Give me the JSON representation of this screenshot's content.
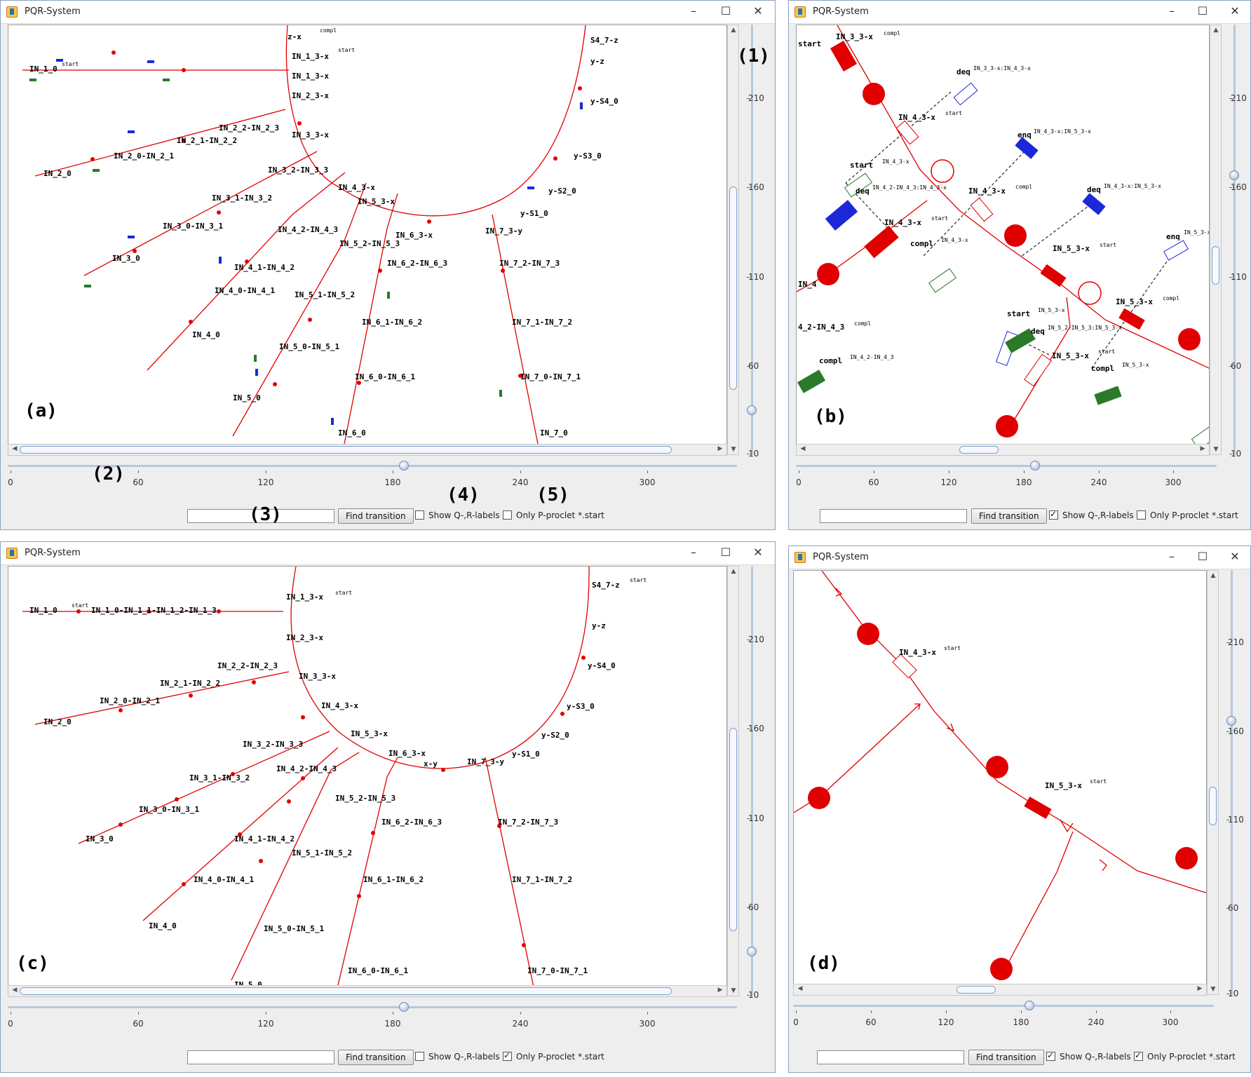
{
  "colors": {
    "net": "#e00000",
    "compl": "#2a7a2a",
    "start_blue": "#1a28d8",
    "frame": "#8aa1c1"
  },
  "icons": [
    "java-cup-icon",
    "minimize-icon",
    "maximize-icon",
    "close-icon"
  ],
  "windows": {
    "a": {
      "title": "PQR-System",
      "panel_label": "(a)",
      "callouts": {
        "c1": "(1)",
        "c2": "(2)",
        "c3": "(3)",
        "c4": "(4)",
        "c5": "(5)"
      },
      "h_ruler": [
        "0",
        "60",
        "120",
        "180",
        "240",
        "300"
      ],
      "v_ruler": [
        "210",
        "160",
        "110",
        "60",
        "10"
      ],
      "search_value": "",
      "find_label": "Find transition",
      "show_qr_label": "Show Q-,R-labels",
      "only_p_label": "Only P-proclet *.start",
      "show_qr_checked": false,
      "only_p_checked": false,
      "graph_labels": {
        "l0": "IN_1_0",
        "l1": "IN_1_3-x",
        "l2": "IN_1_3-x",
        "l3": "IN_2_3-x",
        "l4": "IN_3_3-x",
        "l5": "IN_2_2-IN_2_3",
        "l6": "IN_2_1-IN_2_2",
        "l7": "IN_2_0-IN_2_1",
        "l8": "IN_2_0",
        "l9": "IN_3_2-IN_3_3",
        "l10": "IN_3_1-IN_3_2",
        "l11": "IN_3_0-IN_3_1",
        "l12": "IN_3_0",
        "l13": "IN_4_3-x",
        "l14": "IN_4_2-IN_4_3",
        "l15": "IN_4_1-IN_4_2",
        "l16": "IN_4_0-IN_4_1",
        "l17": "IN_4_0",
        "l18": "IN_5_3-x",
        "l19": "IN_5_2-IN_5_3",
        "l20": "IN_5_1-IN_5_2",
        "l21": "IN_5_0-IN_5_1",
        "l22": "IN_5_0",
        "l23": "IN_6_3-x",
        "l24": "IN_6_2-IN_6_3",
        "l25": "IN_6_1-IN_6_2",
        "l26": "IN_6_0-IN_6_1",
        "l27": "IN_6_0",
        "l28": "IN_7_3-y",
        "l29": "IN_7_2-IN_7_3",
        "l30": "IN_7_1-IN_7_2",
        "l31": "IN_7_0-IN_7_1",
        "l32": "IN_7_0",
        "l33": "S4_7-z",
        "l34": "y-z",
        "l35": "y-S4_0",
        "l36": "y-S3_0",
        "l37": "y-S2_0",
        "l38": "y-S1_0",
        "l39": "z-x"
      },
      "sup_start": "start",
      "sup_compl": "compl"
    },
    "b": {
      "title": "PQR-System",
      "panel_label": "(b)",
      "h_ruler": [
        "0",
        "60",
        "120",
        "180",
        "240",
        "300"
      ],
      "v_ruler": [
        "210",
        "160",
        "110",
        "60",
        "10"
      ],
      "search_value": "",
      "find_label": "Find transition",
      "show_qr_label": "Show Q-,R-labels",
      "only_p_label": "Only P-proclet *.start",
      "show_qr_checked": true,
      "only_p_checked": false,
      "graph_labels": {
        "b1": "IN_3_3-x",
        "b2": "IN_4_3-x",
        "b3": "IN_4_3-x",
        "b4": "IN_4_3-x",
        "b5": "IN_5_3-x",
        "b6": "IN_5_3-x",
        "b7": "IN_5_3-x",
        "b8": "start",
        "b9": "deq",
        "b10": "compl",
        "b11": "deq",
        "b12": "enq",
        "b13": "deq",
        "b14": "enq",
        "b15": "start",
        "b16": "deq",
        "b17": "compl",
        "b18": "compl",
        "b19": "4_2-IN_4_3",
        "b20": "start",
        "b21": "IN_4"
      },
      "graph_sups": {
        "s1": "compl",
        "s2": "start",
        "s3": "compl",
        "s4": "start",
        "s5": "start",
        "s6": "compl",
        "s7": "start",
        "s8": "IN_4_3-x",
        "s9": "IN_4_2-IN_4_3:IN_4_3-x",
        "s10": "IN_4_3-x",
        "s11": "IN_3_3-x:IN_4_3-x",
        "s12": "IN_4_3-x:IN_5_3-x",
        "s13": "IN_4_3-x:IN_5_3-x",
        "s14": "IN_5_3-x",
        "s15": "IN_5_3-x",
        "s16": "IN_5_2-IN_5_3:IN_5_3-x",
        "s17": "IN_5_3-x",
        "s18": "IN_4_2-IN_4_3",
        "s19": "compl"
      }
    },
    "c": {
      "title": "PQR-System",
      "panel_label": "(c)",
      "h_ruler": [
        "0",
        "60",
        "120",
        "180",
        "240",
        "300"
      ],
      "v_ruler": [
        "210",
        "160",
        "110",
        "60",
        "10"
      ],
      "search_value": "",
      "find_label": "Find transition",
      "show_qr_label": "Show Q-,R-labels",
      "only_p_label": "Only P-proclet *.start",
      "show_qr_checked": false,
      "only_p_checked": true,
      "graph_labels": {
        "c0": "IN_1_0",
        "c1": "IN_1_0-IN_1_1-IN_1_2-IN_1_3",
        "c2": "IN_1_3-x",
        "c3": "IN_2_3-x",
        "c4": "IN_3_3-x",
        "c5": "IN_2_2-IN_2_3",
        "c6": "IN_2_1-IN_2_2",
        "c7": "IN_2_0-IN_2_1",
        "c8": "IN_2_0",
        "c9": "IN_4_3-x",
        "c10": "IN_3_2-IN_3_3",
        "c11": "IN_3_1-IN_3_2",
        "c12": "IN_3_0-IN_3_1",
        "c13": "IN_3_0",
        "c14": "IN_5_3-x",
        "c15": "IN_6_3-x",
        "c16": "x-y",
        "c17": "IN_7_3-y",
        "c18": "IN_4_2-IN_4_3",
        "c19": "IN_4_1-IN_4_2",
        "c20": "IN_4_0-IN_4_1",
        "c21": "IN_4_0",
        "c22": "IN_5_2-IN_5_3",
        "c23": "IN_5_1-IN_5_2",
        "c24": "IN_5_0-IN_5_1",
        "c25": "IN_5_0",
        "c26": "IN_6_2-IN_6_3",
        "c27": "IN_6_1-IN_6_2",
        "c28": "IN_6_0-IN_6_1",
        "c29": "IN_7_2-IN_7_3",
        "c30": "IN_7_1-IN_7_2",
        "c31": "IN_7_0-IN_7_1",
        "c32": "S4_7-z",
        "c33": "y-z",
        "c34": "y-S4_0",
        "c35": "y-S3_0",
        "c36": "y-S2_0",
        "c37": "y-S1_0"
      },
      "sup_start": "start"
    },
    "d": {
      "title": "PQR-System",
      "panel_label": "(d)",
      "h_ruler": [
        "0",
        "60",
        "120",
        "180",
        "240",
        "300"
      ],
      "v_ruler": [
        "210",
        "160",
        "110",
        "60",
        "10"
      ],
      "search_value": "",
      "find_label": "Find transition",
      "show_qr_label": "Show Q-,R-labels",
      "only_p_label": "Only P-proclet *.start",
      "show_qr_checked": true,
      "only_p_checked": true,
      "graph_labels": {
        "d1": "IN_4_3-x",
        "d2": "IN_5_3-x"
      },
      "sup_start": "start"
    }
  }
}
